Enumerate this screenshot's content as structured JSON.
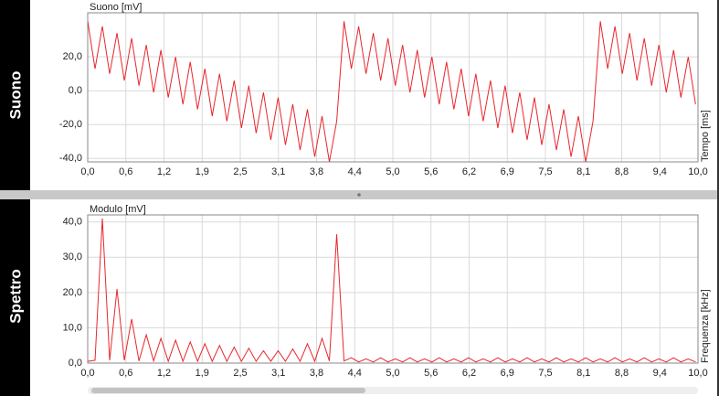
{
  "chart_data": [
    {
      "type": "line",
      "panel_title": "Suono",
      "ylabel": "Suono [mV]",
      "xlabel": "Tempo [ms]",
      "color": "#e8262b",
      "grid": true,
      "xlim": [
        0,
        10
      ],
      "ylim": [
        -42,
        46
      ],
      "xticks": [
        {
          "value": 0,
          "label": "0,0"
        },
        {
          "value": 0.625,
          "label": "0,6"
        },
        {
          "value": 1.25,
          "label": "1,2"
        },
        {
          "value": 1.875,
          "label": "1,9"
        },
        {
          "value": 2.5,
          "label": "2,5"
        },
        {
          "value": 3.125,
          "label": "3,1"
        },
        {
          "value": 3.75,
          "label": "3,8"
        },
        {
          "value": 4.375,
          "label": "4,4"
        },
        {
          "value": 5,
          "label": "5,0"
        },
        {
          "value": 5.625,
          "label": "5,6"
        },
        {
          "value": 6.25,
          "label": "6,2"
        },
        {
          "value": 6.875,
          "label": "6,9"
        },
        {
          "value": 7.5,
          "label": "7,5"
        },
        {
          "value": 8.125,
          "label": "8,1"
        },
        {
          "value": 8.75,
          "label": "8,8"
        },
        {
          "value": 9.375,
          "label": "9,4"
        },
        {
          "value": 10,
          "label": "10,0"
        }
      ],
      "yticks": [
        {
          "value": -40,
          "label": "-40,0"
        },
        {
          "value": -20,
          "label": "-20,0"
        },
        {
          "value": 0,
          "label": "0,0"
        },
        {
          "value": 20,
          "label": "20,0"
        }
      ],
      "x": [
        0,
        0.12,
        0.24,
        0.36,
        0.48,
        0.6,
        0.72,
        0.84,
        0.96,
        1.08,
        1.2,
        1.32,
        1.44,
        1.56,
        1.68,
        1.8,
        1.92,
        2.04,
        2.16,
        2.28,
        2.4,
        2.52,
        2.64,
        2.76,
        2.88,
        3,
        3.12,
        3.24,
        3.36,
        3.48,
        3.6,
        3.72,
        3.84,
        3.96,
        4.08,
        4.2,
        4.32,
        4.44,
        4.56,
        4.68,
        4.8,
        4.92,
        5.04,
        5.16,
        5.28,
        5.4,
        5.52,
        5.64,
        5.76,
        5.88,
        6,
        6.12,
        6.24,
        6.36,
        6.48,
        6.6,
        6.72,
        6.84,
        6.96,
        7.08,
        7.2,
        7.32,
        7.44,
        7.56,
        7.68,
        7.8,
        7.92,
        8.04,
        8.16,
        8.28,
        8.4,
        8.52,
        8.64,
        8.76,
        8.88,
        9,
        9.12,
        9.24,
        9.36,
        9.48,
        9.6,
        9.72,
        9.84,
        9.96
      ],
      "values": [
        41,
        13,
        38,
        10,
        34,
        6,
        31,
        3,
        27,
        -1,
        24,
        -4,
        20,
        -8,
        17,
        -11,
        13,
        -15,
        10,
        -18,
        6,
        -22,
        3,
        -25,
        -1,
        -29,
        -4,
        -32,
        -8,
        -35,
        -11,
        -39,
        -15,
        -42,
        -18,
        41,
        13,
        38,
        10,
        34,
        6,
        31,
        3,
        27,
        -1,
        24,
        -4,
        20,
        -8,
        17,
        -11,
        13,
        -15,
        10,
        -18,
        6,
        -22,
        3,
        -25,
        -1,
        -29,
        -4,
        -32,
        -8,
        -35,
        -11,
        -39,
        -15,
        -42,
        -18,
        41,
        13,
        38,
        10,
        34,
        6,
        31,
        3,
        27,
        -1,
        24,
        -4,
        20,
        -8
      ]
    },
    {
      "type": "line",
      "panel_title": "Spettro",
      "ylabel": "Modulo [mV]",
      "xlabel": "Frequenza [kHz]",
      "color": "#e8262b",
      "grid": true,
      "xlim": [
        0,
        10
      ],
      "ylim": [
        0,
        42
      ],
      "xticks": [
        {
          "value": 0,
          "label": "0,0"
        },
        {
          "value": 0.625,
          "label": "0,6"
        },
        {
          "value": 1.25,
          "label": "1,2"
        },
        {
          "value": 1.875,
          "label": "1,9"
        },
        {
          "value": 2.5,
          "label": "2,5"
        },
        {
          "value": 3.125,
          "label": "3,1"
        },
        {
          "value": 3.75,
          "label": "3,8"
        },
        {
          "value": 4.375,
          "label": "4,4"
        },
        {
          "value": 5,
          "label": "5,0"
        },
        {
          "value": 5.625,
          "label": "5,6"
        },
        {
          "value": 6.25,
          "label": "6,2"
        },
        {
          "value": 6.875,
          "label": "6,9"
        },
        {
          "value": 7.5,
          "label": "7,5"
        },
        {
          "value": 8.125,
          "label": "8,1"
        },
        {
          "value": 8.75,
          "label": "8,8"
        },
        {
          "value": 9.375,
          "label": "9,4"
        },
        {
          "value": 10,
          "label": "10,0"
        }
      ],
      "yticks": [
        {
          "value": 0,
          "label": "0,0"
        },
        {
          "value": 10,
          "label": "10,0"
        },
        {
          "value": 20,
          "label": "20,0"
        },
        {
          "value": 30,
          "label": "30,0"
        },
        {
          "value": 40,
          "label": "40,0"
        }
      ],
      "x": [
        0,
        0.12,
        0.24,
        0.36,
        0.48,
        0.6,
        0.72,
        0.84,
        0.96,
        1.08,
        1.2,
        1.32,
        1.44,
        1.56,
        1.68,
        1.8,
        1.92,
        2.04,
        2.16,
        2.28,
        2.4,
        2.52,
        2.64,
        2.76,
        2.88,
        3,
        3.12,
        3.24,
        3.36,
        3.48,
        3.6,
        3.72,
        3.84,
        3.96,
        4.08,
        4.2,
        4.32,
        4.44,
        4.56,
        4.68,
        4.8,
        4.92,
        5.04,
        5.16,
        5.28,
        5.4,
        5.52,
        5.64,
        5.76,
        5.88,
        6,
        6.12,
        6.24,
        6.36,
        6.48,
        6.6,
        6.72,
        6.84,
        6.96,
        7.08,
        7.2,
        7.32,
        7.44,
        7.56,
        7.68,
        7.8,
        7.92,
        8.04,
        8.16,
        8.28,
        8.4,
        8.52,
        8.64,
        8.76,
        8.88,
        9,
        9.12,
        9.24,
        9.36,
        9.48,
        9.6,
        9.72,
        9.84,
        9.96
      ],
      "values": [
        0.5,
        0.8,
        41,
        0.8,
        21,
        0.8,
        12.5,
        0.6,
        8,
        0.6,
        7,
        0.5,
        6.5,
        0.5,
        6,
        0.5,
        5.5,
        0.5,
        5,
        0.5,
        4.5,
        0.5,
        4.2,
        0.5,
        3.5,
        0.5,
        3.5,
        0.5,
        4,
        0.5,
        5.5,
        0.5,
        7,
        0.6,
        36.5,
        0.6,
        1.5,
        0.3,
        1.2,
        0.3,
        1.5,
        0.3,
        1.2,
        0.3,
        1.5,
        0.3,
        1.2,
        0.3,
        1.5,
        0.3,
        1.2,
        0.3,
        1.5,
        0.3,
        1.2,
        0.3,
        1.5,
        0.3,
        1.2,
        0.3,
        1.5,
        0.3,
        1.2,
        0.3,
        1.5,
        0.3,
        1.2,
        0.3,
        1.5,
        0.3,
        1.2,
        0.3,
        1.5,
        0.3,
        1.2,
        0.3,
        1.5,
        0.3,
        1.2,
        0.3,
        1.5,
        0.3,
        1.2,
        0.3
      ]
    }
  ]
}
